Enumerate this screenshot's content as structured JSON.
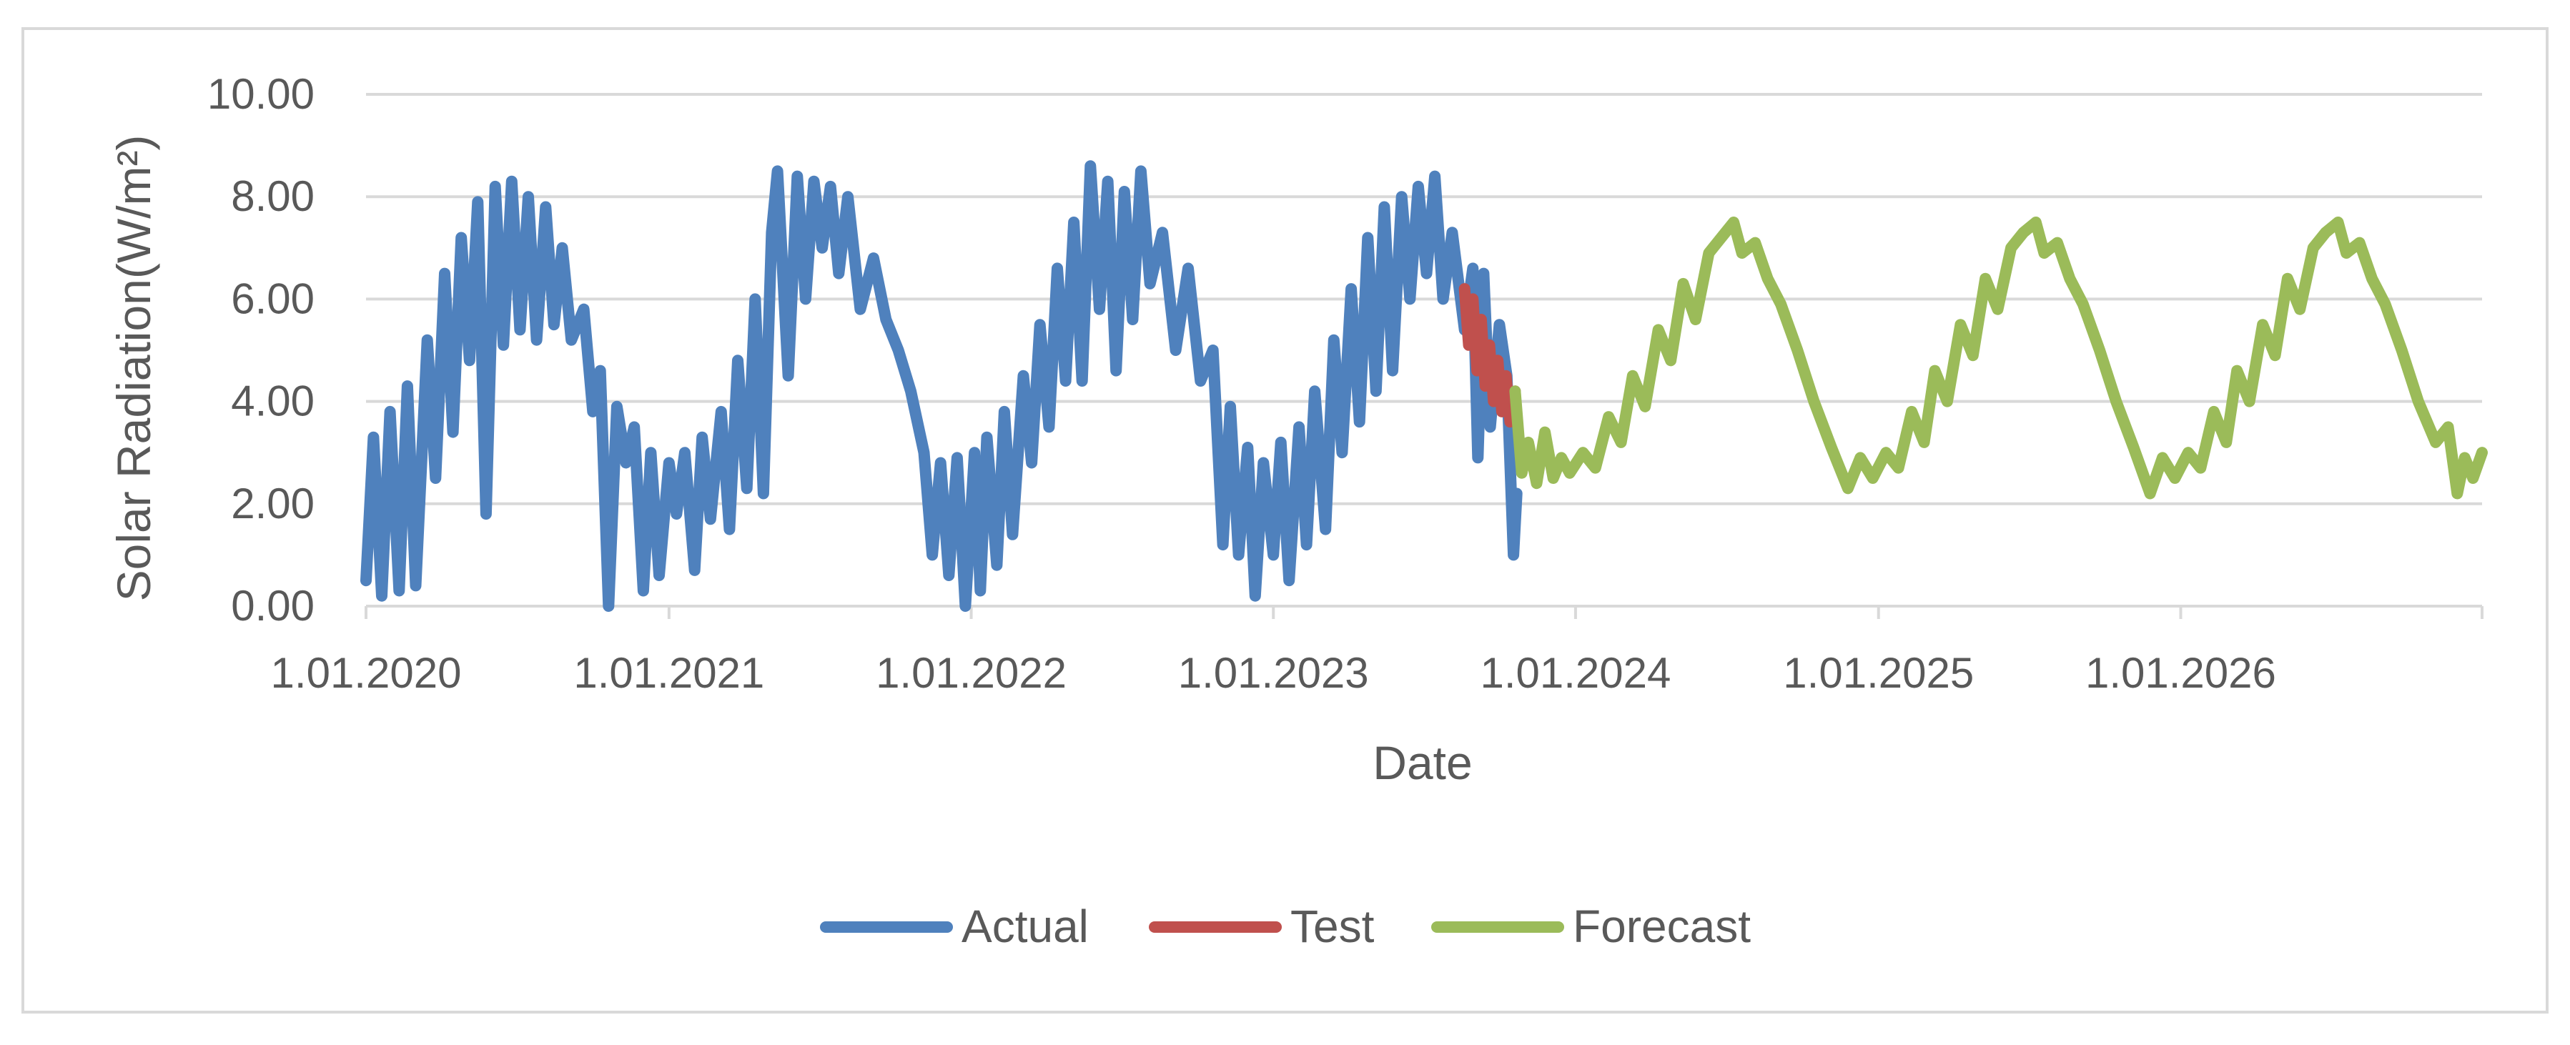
{
  "chart_data": {
    "type": "line",
    "title": "",
    "xlabel": "Date",
    "ylabel": "Solar Radiation(W/m²)",
    "ylim": [
      0,
      10
    ],
    "xlim": [
      "2020-01-01",
      "2026-12-31"
    ],
    "y_ticks": [
      "0.00",
      "2.00",
      "4.00",
      "6.00",
      "8.00",
      "10.00"
    ],
    "x_ticks": [
      {
        "date": "2020-01-01",
        "label": "1.01.2020"
      },
      {
        "date": "2021-01-01",
        "label": "1.01.2021"
      },
      {
        "date": "2022-01-01",
        "label": "1.01.2022"
      },
      {
        "date": "2023-01-01",
        "label": "1.01.2023"
      },
      {
        "date": "2024-01-01",
        "label": "1.01.2024"
      },
      {
        "date": "2025-01-01",
        "label": "1.01.2025"
      },
      {
        "date": "2026-01-01",
        "label": "1.01.2026"
      }
    ],
    "grid": true,
    "legend_position": "bottom",
    "series": [
      {
        "name": "Actual",
        "color": "#4f81bd",
        "points": [
          [
            "2020-01-01",
            0.5
          ],
          [
            "2020-01-10",
            3.3
          ],
          [
            "2020-01-20",
            0.2
          ],
          [
            "2020-01-30",
            3.8
          ],
          [
            "2020-02-10",
            0.3
          ],
          [
            "2020-02-20",
            4.3
          ],
          [
            "2020-03-01",
            0.4
          ],
          [
            "2020-03-15",
            5.2
          ],
          [
            "2020-03-25",
            2.5
          ],
          [
            "2020-04-05",
            6.5
          ],
          [
            "2020-04-15",
            3.4
          ],
          [
            "2020-04-25",
            7.2
          ],
          [
            "2020-05-05",
            4.8
          ],
          [
            "2020-05-15",
            7.9
          ],
          [
            "2020-05-25",
            1.8
          ],
          [
            "2020-06-05",
            8.2
          ],
          [
            "2020-06-15",
            5.1
          ],
          [
            "2020-06-25",
            8.3
          ],
          [
            "2020-07-05",
            5.4
          ],
          [
            "2020-07-15",
            8.0
          ],
          [
            "2020-07-25",
            5.2
          ],
          [
            "2020-08-05",
            7.8
          ],
          [
            "2020-08-15",
            5.5
          ],
          [
            "2020-08-25",
            7.0
          ],
          [
            "2020-09-05",
            5.2
          ],
          [
            "2020-09-20",
            5.8
          ],
          [
            "2020-10-01",
            3.8
          ],
          [
            "2020-10-10",
            4.6
          ],
          [
            "2020-10-20",
            0.0
          ],
          [
            "2020-10-30",
            3.9
          ],
          [
            "2020-11-10",
            2.8
          ],
          [
            "2020-11-20",
            3.5
          ],
          [
            "2020-12-01",
            0.3
          ],
          [
            "2020-12-10",
            3.0
          ],
          [
            "2020-12-20",
            0.6
          ],
          [
            "2021-01-01",
            2.8
          ],
          [
            "2021-01-10",
            1.8
          ],
          [
            "2021-01-20",
            3.0
          ],
          [
            "2021-02-01",
            0.7
          ],
          [
            "2021-02-10",
            3.3
          ],
          [
            "2021-02-20",
            1.7
          ],
          [
            "2021-03-05",
            3.8
          ],
          [
            "2021-03-15",
            1.5
          ],
          [
            "2021-03-25",
            4.8
          ],
          [
            "2021-04-05",
            2.3
          ],
          [
            "2021-04-15",
            6.0
          ],
          [
            "2021-04-25",
            2.2
          ],
          [
            "2021-05-05",
            7.3
          ],
          [
            "2021-05-12",
            8.5
          ],
          [
            "2021-05-25",
            4.5
          ],
          [
            "2021-06-05",
            8.4
          ],
          [
            "2021-06-15",
            6.0
          ],
          [
            "2021-06-25",
            8.3
          ],
          [
            "2021-07-05",
            7.0
          ],
          [
            "2021-07-15",
            8.2
          ],
          [
            "2021-07-25",
            6.5
          ],
          [
            "2021-08-05",
            8.0
          ],
          [
            "2021-08-20",
            5.8
          ],
          [
            "2021-09-05",
            6.8
          ],
          [
            "2021-09-20",
            5.6
          ],
          [
            "2021-10-05",
            5.0
          ],
          [
            "2021-10-20",
            4.2
          ],
          [
            "2021-11-05",
            3.0
          ],
          [
            "2021-11-15",
            1.0
          ],
          [
            "2021-11-25",
            2.8
          ],
          [
            "2021-12-05",
            0.6
          ],
          [
            "2021-12-15",
            2.9
          ],
          [
            "2021-12-25",
            0.0
          ],
          [
            "2022-01-05",
            3.0
          ],
          [
            "2022-01-12",
            0.3
          ],
          [
            "2022-01-20",
            3.3
          ],
          [
            "2022-02-01",
            0.8
          ],
          [
            "2022-02-10",
            3.8
          ],
          [
            "2022-02-20",
            1.4
          ],
          [
            "2022-03-05",
            4.5
          ],
          [
            "2022-03-15",
            2.8
          ],
          [
            "2022-03-25",
            5.5
          ],
          [
            "2022-04-05",
            3.5
          ],
          [
            "2022-04-15",
            6.6
          ],
          [
            "2022-04-25",
            4.4
          ],
          [
            "2022-05-05",
            7.5
          ],
          [
            "2022-05-15",
            4.4
          ],
          [
            "2022-05-25",
            8.6
          ],
          [
            "2022-06-05",
            5.8
          ],
          [
            "2022-06-15",
            8.3
          ],
          [
            "2022-06-25",
            4.6
          ],
          [
            "2022-07-05",
            8.1
          ],
          [
            "2022-07-15",
            5.6
          ],
          [
            "2022-07-25",
            8.5
          ],
          [
            "2022-08-05",
            6.3
          ],
          [
            "2022-08-20",
            7.3
          ],
          [
            "2022-09-05",
            5.0
          ],
          [
            "2022-09-20",
            6.6
          ],
          [
            "2022-10-05",
            4.4
          ],
          [
            "2022-10-20",
            5.0
          ],
          [
            "2022-11-01",
            1.2
          ],
          [
            "2022-11-10",
            3.9
          ],
          [
            "2022-11-20",
            1.0
          ],
          [
            "2022-12-01",
            3.1
          ],
          [
            "2022-12-10",
            0.2
          ],
          [
            "2022-12-20",
            2.8
          ],
          [
            "2023-01-01",
            1.0
          ],
          [
            "2023-01-10",
            3.2
          ],
          [
            "2023-01-20",
            0.5
          ],
          [
            "2023-02-01",
            3.5
          ],
          [
            "2023-02-10",
            1.2
          ],
          [
            "2023-02-20",
            4.2
          ],
          [
            "2023-03-05",
            1.5
          ],
          [
            "2023-03-15",
            5.2
          ],
          [
            "2023-03-25",
            3.0
          ],
          [
            "2023-04-05",
            6.2
          ],
          [
            "2023-04-15",
            3.6
          ],
          [
            "2023-04-25",
            7.2
          ],
          [
            "2023-05-05",
            4.2
          ],
          [
            "2023-05-15",
            7.8
          ],
          [
            "2023-05-25",
            4.6
          ],
          [
            "2023-06-05",
            8.0
          ],
          [
            "2023-06-15",
            6.0
          ],
          [
            "2023-06-25",
            8.2
          ],
          [
            "2023-07-05",
            6.5
          ],
          [
            "2023-07-15",
            8.4
          ],
          [
            "2023-07-25",
            6.0
          ],
          [
            "2023-08-05",
            7.3
          ],
          [
            "2023-08-20",
            5.4
          ],
          [
            "2023-08-30",
            6.6
          ],
          [
            "2023-09-05",
            2.9
          ],
          [
            "2023-09-12",
            6.5
          ],
          [
            "2023-09-20",
            3.5
          ],
          [
            "2023-10-01",
            5.5
          ],
          [
            "2023-10-10",
            4.5
          ],
          [
            "2023-10-18",
            1.0
          ],
          [
            "2023-10-22",
            2.2
          ]
        ]
      },
      {
        "name": "Test",
        "color": "#c0504d",
        "points": [
          [
            "2023-08-20",
            6.2
          ],
          [
            "2023-08-25",
            5.1
          ],
          [
            "2023-08-30",
            6.0
          ],
          [
            "2023-09-04",
            4.6
          ],
          [
            "2023-09-09",
            5.6
          ],
          [
            "2023-09-14",
            4.3
          ],
          [
            "2023-09-19",
            5.1
          ],
          [
            "2023-09-24",
            4.0
          ],
          [
            "2023-09-29",
            4.8
          ],
          [
            "2023-10-04",
            3.8
          ],
          [
            "2023-10-09",
            4.5
          ],
          [
            "2023-10-14",
            3.6
          ],
          [
            "2023-10-20",
            4.2
          ]
        ]
      },
      {
        "name": "Forecast",
        "color": "#9bbb59",
        "points": [
          [
            "2023-10-20",
            4.2
          ],
          [
            "2023-10-28",
            2.6
          ],
          [
            "2023-11-05",
            3.2
          ],
          [
            "2023-11-15",
            2.4
          ],
          [
            "2023-11-25",
            3.4
          ],
          [
            "2023-12-05",
            2.5
          ],
          [
            "2023-12-15",
            2.9
          ],
          [
            "2023-12-25",
            2.6
          ],
          [
            "2024-01-10",
            3.0
          ],
          [
            "2024-01-25",
            2.7
          ],
          [
            "2024-02-10",
            3.7
          ],
          [
            "2024-02-25",
            3.2
          ],
          [
            "2024-03-10",
            4.5
          ],
          [
            "2024-03-25",
            3.9
          ],
          [
            "2024-04-10",
            5.4
          ],
          [
            "2024-04-25",
            4.8
          ],
          [
            "2024-05-10",
            6.3
          ],
          [
            "2024-05-25",
            5.6
          ],
          [
            "2024-06-10",
            6.9
          ],
          [
            "2024-06-25",
            7.2
          ],
          [
            "2024-07-10",
            7.5
          ],
          [
            "2024-07-20",
            6.9
          ],
          [
            "2024-08-05",
            7.1
          ],
          [
            "2024-08-20",
            6.4
          ],
          [
            "2024-09-05",
            5.9
          ],
          [
            "2024-09-25",
            5.0
          ],
          [
            "2024-10-15",
            4.0
          ],
          [
            "2024-11-05",
            3.1
          ],
          [
            "2024-11-25",
            2.3
          ],
          [
            "2024-12-10",
            2.9
          ],
          [
            "2024-12-25",
            2.5
          ],
          [
            "2025-01-10",
            3.0
          ],
          [
            "2025-01-25",
            2.7
          ],
          [
            "2025-02-10",
            3.8
          ],
          [
            "2025-02-25",
            3.2
          ],
          [
            "2025-03-10",
            4.6
          ],
          [
            "2025-03-25",
            4.0
          ],
          [
            "2025-04-10",
            5.5
          ],
          [
            "2025-04-25",
            4.9
          ],
          [
            "2025-05-10",
            6.4
          ],
          [
            "2025-05-25",
            5.8
          ],
          [
            "2025-06-10",
            7.0
          ],
          [
            "2025-06-25",
            7.3
          ],
          [
            "2025-07-10",
            7.5
          ],
          [
            "2025-07-20",
            6.9
          ],
          [
            "2025-08-05",
            7.1
          ],
          [
            "2025-08-20",
            6.4
          ],
          [
            "2025-09-05",
            5.9
          ],
          [
            "2025-09-25",
            5.0
          ],
          [
            "2025-10-15",
            4.0
          ],
          [
            "2025-11-05",
            3.1
          ],
          [
            "2025-11-25",
            2.2
          ],
          [
            "2025-12-10",
            2.9
          ],
          [
            "2025-12-25",
            2.5
          ],
          [
            "2026-01-10",
            3.0
          ],
          [
            "2026-01-25",
            2.7
          ],
          [
            "2026-02-10",
            3.8
          ],
          [
            "2026-02-25",
            3.2
          ],
          [
            "2026-03-10",
            4.6
          ],
          [
            "2026-03-25",
            4.0
          ],
          [
            "2026-04-10",
            5.5
          ],
          [
            "2026-04-25",
            4.9
          ],
          [
            "2026-05-10",
            6.4
          ],
          [
            "2026-05-25",
            5.8
          ],
          [
            "2026-06-10",
            7.0
          ],
          [
            "2026-06-25",
            7.3
          ],
          [
            "2026-07-10",
            7.5
          ],
          [
            "2026-07-20",
            6.9
          ],
          [
            "2026-08-05",
            7.1
          ],
          [
            "2026-08-20",
            6.4
          ],
          [
            "2026-09-05",
            5.9
          ],
          [
            "2026-09-25",
            5.0
          ],
          [
            "2026-10-15",
            4.0
          ],
          [
            "2026-11-05",
            3.2
          ],
          [
            "2026-11-20",
            3.5
          ],
          [
            "2026-12-01",
            2.2
          ],
          [
            "2026-12-10",
            2.9
          ],
          [
            "2026-12-20",
            2.5
          ],
          [
            "2026-12-31",
            3.0
          ]
        ]
      }
    ]
  }
}
